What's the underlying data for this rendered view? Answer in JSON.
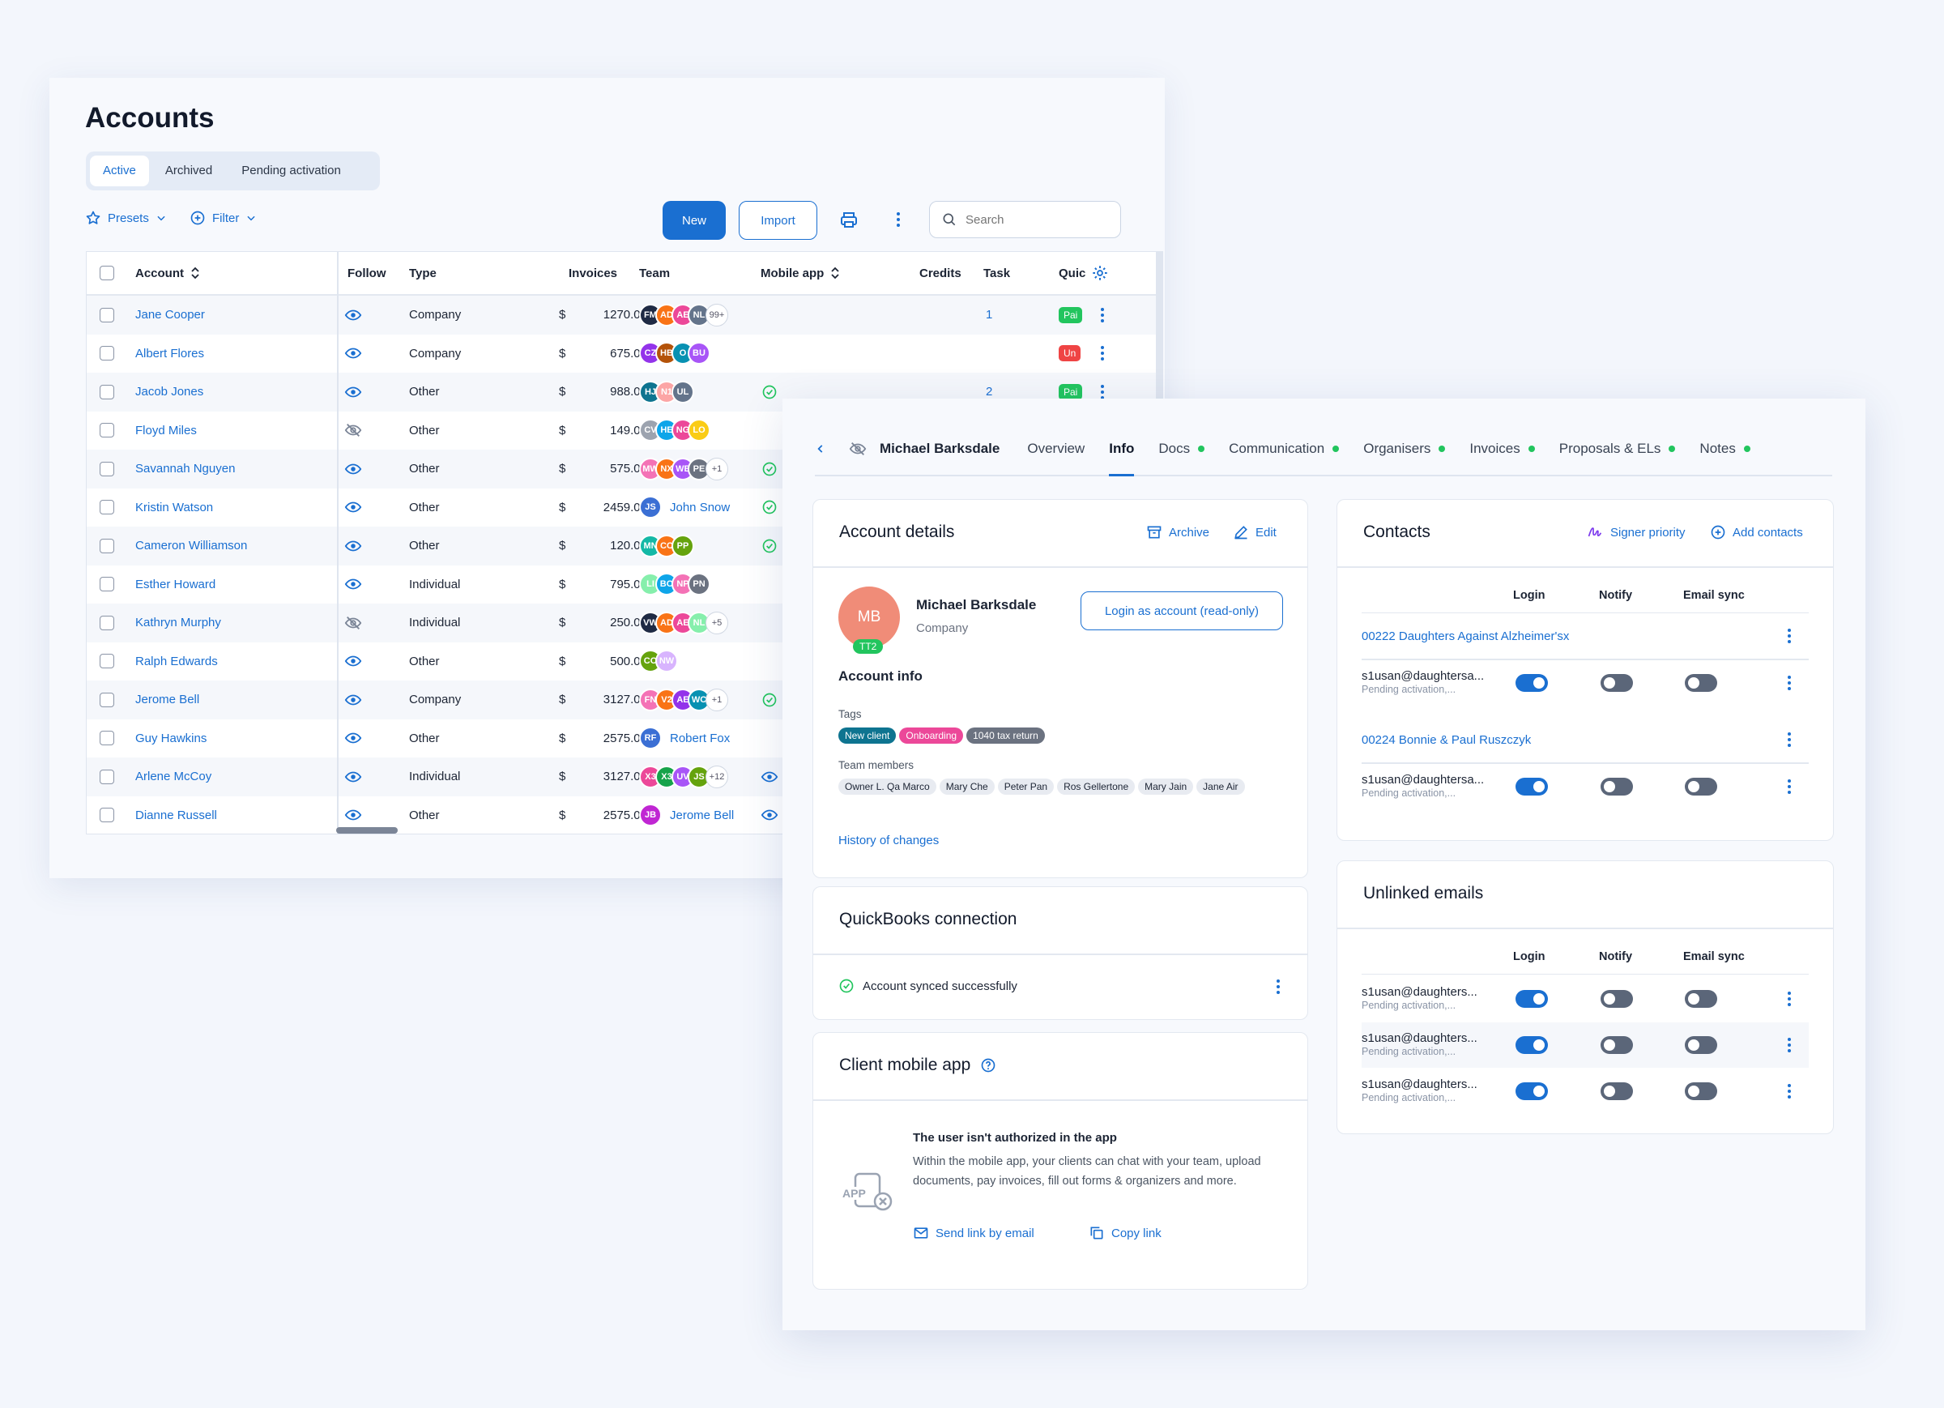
{
  "accounts": {
    "title": "Accounts",
    "tabs": [
      "Active",
      "Archived",
      "Pending activation"
    ],
    "presets_label": "Presets",
    "filter_label": "Filter",
    "new_label": "New",
    "import_label": "Import",
    "search_placeholder": "Search",
    "columns": {
      "account": "Account",
      "follow": "Follow",
      "type": "Type",
      "invoices": "Invoices",
      "team": "Team",
      "mobile": "Mobile app",
      "credits": "Credits",
      "task": "Task",
      "quick": "Quic"
    },
    "currency": "$",
    "rows": [
      {
        "name": "Jane Cooper",
        "follow": "on",
        "type": "Company",
        "invoices": "1270.00",
        "team": [
          [
            "FM",
            "#1f2a44"
          ],
          [
            "AD",
            "#f97316"
          ],
          [
            "AE",
            "#ec4899"
          ],
          [
            "NL",
            "#64748b"
          ]
        ],
        "more": "99+",
        "mobile": false,
        "task": "1",
        "quick": "Pai",
        "quick_color": "#22c55e"
      },
      {
        "name": "Albert Flores",
        "follow": "on",
        "type": "Company",
        "invoices": "675.00",
        "team": [
          [
            "CZ",
            "#9333ea"
          ],
          [
            "HB",
            "#b45309"
          ],
          [
            "O",
            "#0891b2"
          ],
          [
            "BU",
            "#a855f7"
          ]
        ],
        "more": "",
        "mobile": false,
        "task": "",
        "quick": "Un",
        "quick_color": "#ef4444"
      },
      {
        "name": "Jacob Jones",
        "follow": "on",
        "type": "Other",
        "invoices": "988.00",
        "team": [
          [
            "HJ",
            "#0e7490"
          ],
          [
            "N1",
            "#fca5a5"
          ],
          [
            "UL",
            "#64748b"
          ]
        ],
        "more": "",
        "mobile": true,
        "task": "2",
        "quick": "Pai",
        "quick_color": "#22c55e"
      },
      {
        "name": "Floyd Miles",
        "follow": "off",
        "type": "Other",
        "invoices": "149.00",
        "team": [
          [
            "CV",
            "#9ca3af"
          ],
          [
            "HE",
            "#0ea5e9"
          ],
          [
            "NG",
            "#ec4899"
          ],
          [
            "LO",
            "#facc15"
          ]
        ],
        "more": "",
        "mobile": false,
        "task": "",
        "quick": "",
        "quick_color": ""
      },
      {
        "name": "Savannah Nguyen",
        "follow": "on",
        "type": "Other",
        "invoices": "575.00",
        "team": [
          [
            "MW",
            "#f472b6"
          ],
          [
            "NX",
            "#f97316"
          ],
          [
            "WE",
            "#a855f7"
          ],
          [
            "PE",
            "#6b7280"
          ]
        ],
        "more": "+1",
        "mobile": true,
        "task": "",
        "quick": "",
        "quick_color": ""
      },
      {
        "name": "Kristin Watson",
        "follow": "on",
        "type": "Other",
        "invoices": "2459.00",
        "team": [
          [
            "JS",
            "#3b6fd4"
          ]
        ],
        "member": "John Snow",
        "more": "",
        "mobile": true,
        "task": "",
        "quick": "",
        "quick_color": ""
      },
      {
        "name": "Cameron Williamson",
        "follow": "on",
        "type": "Other",
        "invoices": "120.00",
        "team": [
          [
            "MN",
            "#14b8a6"
          ],
          [
            "CC",
            "#f97316"
          ],
          [
            "PP",
            "#65a30d"
          ]
        ],
        "more": "",
        "mobile": true,
        "task": "",
        "quick": "",
        "quick_color": ""
      },
      {
        "name": "Esther Howard",
        "follow": "on",
        "type": "Individual",
        "invoices": "795.00",
        "team": [
          [
            "LI",
            "#86efac"
          ],
          [
            "BO",
            "#0ea5e9"
          ],
          [
            "NP",
            "#f472b6"
          ],
          [
            "PN",
            "#6b7280"
          ]
        ],
        "more": "",
        "mobile": false,
        "task": "",
        "quick": "",
        "quick_color": ""
      },
      {
        "name": "Kathryn Murphy",
        "follow": "off",
        "type": "Individual",
        "invoices": "250.00",
        "team": [
          [
            "VW",
            "#1f2a44"
          ],
          [
            "AD",
            "#f97316"
          ],
          [
            "AE",
            "#ec4899"
          ],
          [
            "NL",
            "#86efac"
          ]
        ],
        "more": "+5",
        "mobile": false,
        "task": "",
        "quick": "",
        "quick_color": ""
      },
      {
        "name": "Ralph Edwards",
        "follow": "on",
        "type": "Other",
        "invoices": "500.00",
        "team": [
          [
            "CO",
            "#65a30d"
          ],
          [
            "NW",
            "#d8b4fe"
          ]
        ],
        "more": "",
        "mobile": false,
        "task": "",
        "quick": "",
        "quick_color": ""
      },
      {
        "name": "Jerome Bell",
        "follow": "on",
        "type": "Company",
        "invoices": "3127.00",
        "team": [
          [
            "FN",
            "#f472b6"
          ],
          [
            "V2",
            "#f97316"
          ],
          [
            "AE",
            "#9333ea"
          ],
          [
            "WC",
            "#0891b2"
          ]
        ],
        "more": "+1",
        "mobile": true,
        "task": "",
        "quick": "",
        "quick_color": ""
      },
      {
        "name": "Guy Hawkins",
        "follow": "on",
        "type": "Other",
        "invoices": "2575.00",
        "team": [
          [
            "RF",
            "#3b6fd4"
          ]
        ],
        "member": "Robert Fox",
        "more": "",
        "mobile": false,
        "task": "",
        "quick": "",
        "quick_color": ""
      },
      {
        "name": "Arlene McCoy",
        "follow": "on",
        "type": "Individual",
        "invoices": "3127.00",
        "team": [
          [
            "X3",
            "#ec4899"
          ],
          [
            "X3",
            "#16a34a"
          ],
          [
            "UV",
            "#a855f7"
          ],
          [
            "JS",
            "#65a30d"
          ]
        ],
        "more": "+12",
        "mobile": "eye",
        "task": "",
        "quick": "",
        "quick_color": ""
      },
      {
        "name": "Dianne Russell",
        "follow": "on",
        "type": "Other",
        "invoices": "2575.00",
        "team": [
          [
            "JB",
            "#c026d3"
          ]
        ],
        "member": "Jerome Bell",
        "more": "",
        "mobile": "eye",
        "task": "",
        "quick": "",
        "quick_color": ""
      }
    ]
  },
  "detail": {
    "client_name": "Michael Barksdale",
    "tabs": [
      {
        "label": "Overview",
        "dot": false
      },
      {
        "label": "Info",
        "dot": false,
        "active": true
      },
      {
        "label": "Docs",
        "dot": true
      },
      {
        "label": "Communication",
        "dot": true
      },
      {
        "label": "Organisers",
        "dot": true
      },
      {
        "label": "Invoices",
        "dot": true
      },
      {
        "label": "Proposals & ELs",
        "dot": true
      },
      {
        "label": "Notes",
        "dot": true
      }
    ],
    "account_details": {
      "title": "Account details",
      "archive": "Archive",
      "edit": "Edit",
      "initials": "MB",
      "badge": "TT2",
      "name": "Michael Barksdale",
      "kind": "Company",
      "login_btn": "Login as account (read-only)",
      "info_title": "Account info",
      "tags_label": "Tags",
      "tags": [
        [
          "New client",
          "#0e7490"
        ],
        [
          "Onboarding",
          "#ec4899"
        ],
        [
          "1040 tax return",
          "#6b7280"
        ]
      ],
      "team_label": "Team members",
      "team": [
        "Owner L. Qa Marco",
        "Mary Che",
        "Peter Pan",
        "Ros Gellertone",
        "Mary Jain",
        "Jane Air"
      ],
      "history": "History of changes"
    },
    "quickbooks": {
      "title": "QuickBooks connection",
      "status": "Account synced successfully"
    },
    "mobile": {
      "title": "Client mobile app",
      "heading": "The user isn't authorized in the app",
      "body": "Within the mobile app, your clients can chat with your team, upload documents, pay invoices, fill out forms & organizers and more.",
      "app_icon_text": "APP",
      "send": "Send link by email",
      "copy": "Copy link"
    },
    "contacts": {
      "title": "Contacts",
      "signer": "Signer priority",
      "add": "Add contacts",
      "cols": [
        "Login",
        "Notify",
        "Email sync"
      ],
      "groups": [
        {
          "name": "00222 Daughters Against Alzheimer'sx",
          "email": "s1usan@daughtersa...",
          "status": "Pending activation,..."
        },
        {
          "name": "00224 Bonnie & Paul Ruszczyk",
          "email": "s1usan@daughtersa...",
          "status": "Pending activation,..."
        }
      ]
    },
    "unlinked": {
      "title": "Unlinked emails",
      "cols": [
        "Login",
        "Notify",
        "Email sync"
      ],
      "rows": [
        {
          "email": "s1usan@daughters...",
          "status": "Pending activation,..."
        },
        {
          "email": "s1usan@daughters...",
          "status": "Pending activation,..."
        },
        {
          "email": "s1usan@daughters...",
          "status": "Pending activation,..."
        }
      ]
    }
  }
}
